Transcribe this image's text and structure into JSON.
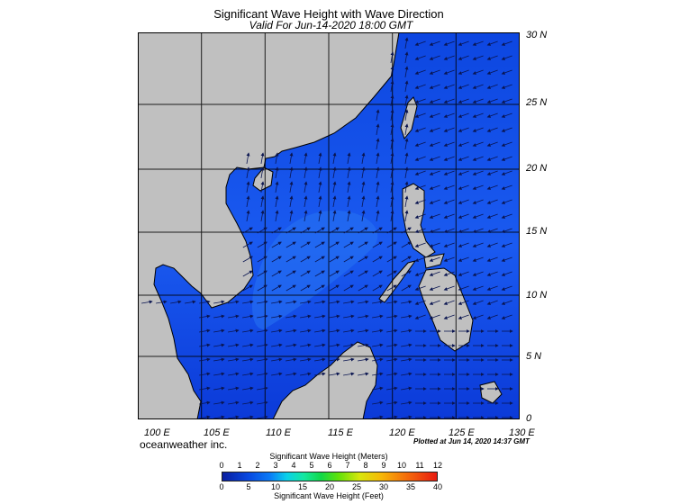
{
  "title": "Significant Wave Height with Wave Direction",
  "subtitle": "Valid For Jun-14-2020 18:00 GMT",
  "lon_labels": [
    "100 E",
    "105 E",
    "110 E",
    "115 E",
    "120 E",
    "125 E",
    "130 E"
  ],
  "lat_labels": [
    "30 N",
    "25 N",
    "20 N",
    "15 N",
    "10 N",
    "5 N",
    "0"
  ],
  "credit": "oceanweather inc.",
  "plotted": "Plotted at Jun 14, 2020 14:37 GMT",
  "colorbar": {
    "meters_title": "Significant Wave Height (Meters)",
    "meters_ticks": [
      "0",
      "1",
      "2",
      "3",
      "4",
      "5",
      "6",
      "7",
      "8",
      "9",
      "10",
      "11",
      "12"
    ],
    "feet_ticks": [
      "0",
      "5",
      "10",
      "15",
      "20",
      "25",
      "30",
      "35",
      "40"
    ],
    "feet_title": "Significant Wave Height (Feet)"
  },
  "colors": {
    "land": "#c0c0c0",
    "sea_dark": "#0a3ad8",
    "sea_light": "#1e66f0",
    "grid": "#000000"
  }
}
